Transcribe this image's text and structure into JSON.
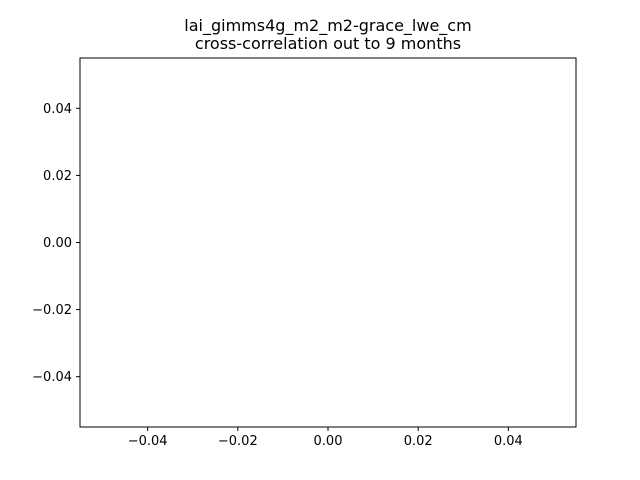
{
  "chart_data": {
    "type": "line",
    "title": "lai_gimms4g_m2_m2-grace_lwe_cm",
    "subtitle": "cross-correlation out to 9 months",
    "xlabel": "",
    "ylabel": "",
    "xlim": [
      -0.055,
      0.055
    ],
    "ylim": [
      -0.055,
      0.055
    ],
    "x_ticks": [
      -0.04,
      -0.02,
      0.0,
      0.02,
      0.04
    ],
    "x_tick_labels": [
      "−0.04",
      "−0.02",
      "0.00",
      "0.02",
      "0.04"
    ],
    "y_ticks": [
      -0.04,
      -0.02,
      0.0,
      0.02,
      0.04
    ],
    "y_tick_labels": [
      "−0.04",
      "−0.02",
      "0.00",
      "0.02",
      "0.04"
    ],
    "grid": false,
    "series": [
      {
        "x": [],
        "y": []
      }
    ]
  }
}
